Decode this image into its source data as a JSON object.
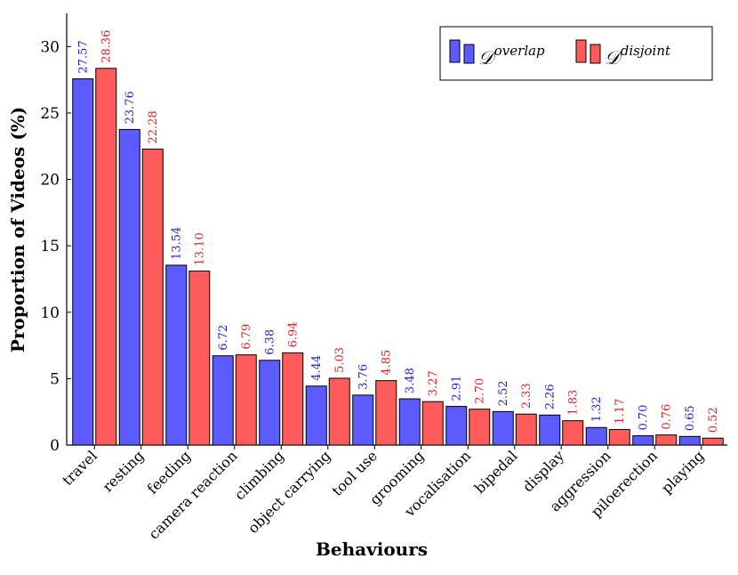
{
  "chart_data": {
    "type": "bar",
    "xlabel": "Behaviours",
    "ylabel": "Proportion of Videos (%)",
    "ylim": [
      0,
      32.5
    ],
    "yticks": [
      0,
      5,
      10,
      15,
      20,
      25,
      30
    ],
    "grid": false,
    "legend_position": "top-right",
    "categories": [
      "travel",
      "resting",
      "feeding",
      "camera reaction",
      "climbing",
      "object carrying",
      "tool use",
      "grooming",
      "vocalisation",
      "bipedal",
      "display",
      "aggression",
      "piloerection",
      "playing"
    ],
    "series": [
      {
        "name": "D^overlap",
        "legend_base": "𝒟",
        "legend_sup": "overlap",
        "color": "#5b5bff",
        "label_color": "#2222dd",
        "values": [
          27.57,
          23.76,
          13.54,
          6.72,
          6.38,
          4.44,
          3.76,
          3.48,
          2.91,
          2.52,
          2.26,
          1.32,
          0.7,
          0.65
        ],
        "value_labels": [
          "27.57",
          "23.76",
          "13.54",
          "6.72",
          "6.38",
          "4.44",
          "3.76",
          "3.48",
          "2.91",
          "2.52",
          "2.26",
          "1.32",
          "0.70",
          "0.65"
        ]
      },
      {
        "name": "D^disjoint",
        "legend_base": "𝒟",
        "legend_sup": "disjoint",
        "color": "#ff5b5b",
        "label_color": "#dd2222",
        "values": [
          28.36,
          22.28,
          13.1,
          6.79,
          6.94,
          5.03,
          4.85,
          3.27,
          2.7,
          2.33,
          1.83,
          1.17,
          0.76,
          0.52
        ],
        "value_labels": [
          "28.36",
          "22.28",
          "13.10",
          "6.79",
          "6.94",
          "5.03",
          "4.85",
          "3.27",
          "2.70",
          "2.33",
          "1.83",
          "1.17",
          "0.76",
          "0.52"
        ]
      }
    ]
  }
}
